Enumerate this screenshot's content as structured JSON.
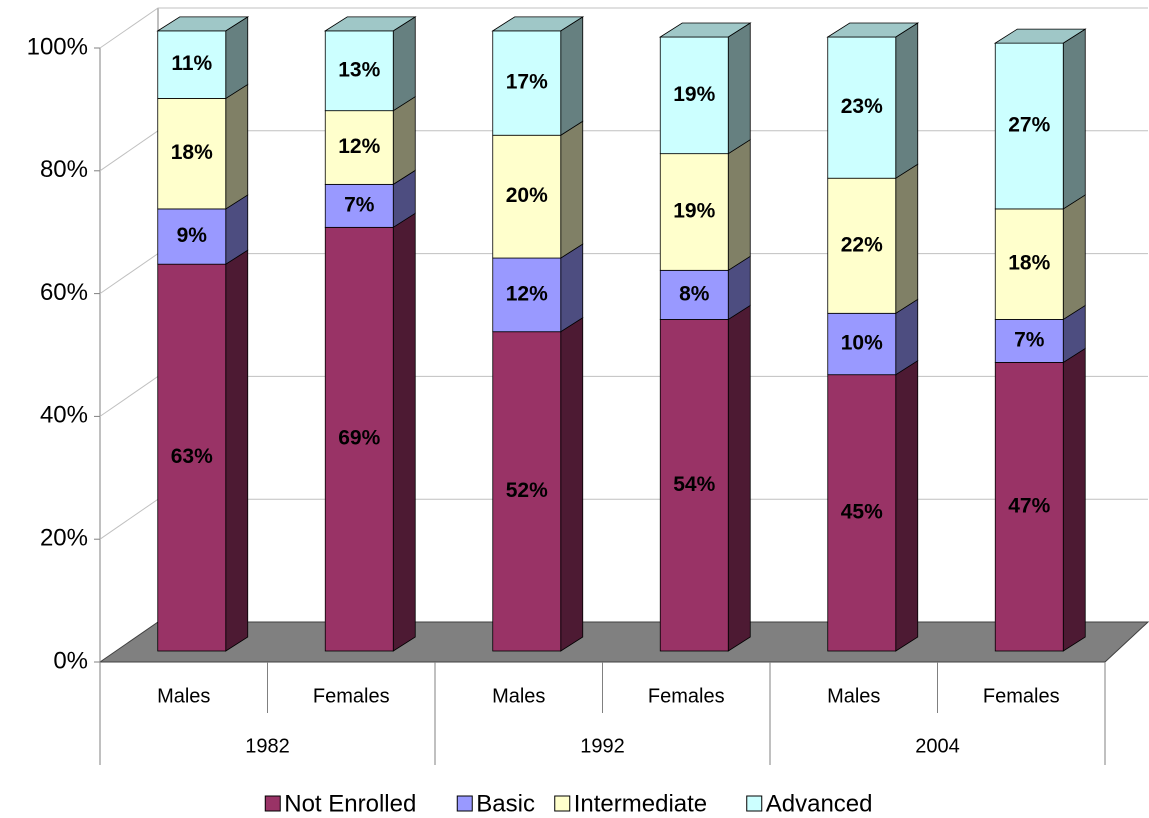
{
  "chart_data": {
    "type": "stacked-bar-3d",
    "categories": [
      "Males",
      "Females",
      "Males",
      "Females",
      "Males",
      "Females"
    ],
    "groups": [
      "1982",
      "1992",
      "2004"
    ],
    "series": [
      {
        "name": "Not Enrolled",
        "color": "#993366",
        "values": [
          63,
          69,
          52,
          54,
          45,
          47
        ],
        "value_labels": [
          "63%",
          "69%",
          "52%",
          "54%",
          "45%",
          "47%"
        ]
      },
      {
        "name": "Basic",
        "color": "#9999FF",
        "values": [
          9,
          7,
          12,
          8,
          10,
          7
        ],
        "value_labels": [
          "9%",
          "7%",
          "12%",
          "8%",
          "10%",
          "7%"
        ]
      },
      {
        "name": "Intermediate",
        "color": "#FFFFCC",
        "values": [
          18,
          12,
          20,
          19,
          22,
          18
        ],
        "value_labels": [
          "18%",
          "12%",
          "20%",
          "19%",
          "22%",
          "18%"
        ]
      },
      {
        "name": "Advanced",
        "color": "#CCFFFF",
        "values": [
          11,
          13,
          17,
          19,
          23,
          27
        ],
        "value_labels": [
          "11%",
          "13%",
          "17%",
          "19%",
          "23%",
          "27%"
        ]
      }
    ],
    "ylim": [
      0,
      100
    ],
    "yticks": [
      {
        "value": 0,
        "label": "0%"
      },
      {
        "value": 20,
        "label": "20%"
      },
      {
        "value": 40,
        "label": "40%"
      },
      {
        "value": 60,
        "label": "60%"
      },
      {
        "value": 80,
        "label": "80%"
      },
      {
        "value": 100,
        "label": "100%"
      }
    ],
    "grid": true,
    "legend": "bottom"
  }
}
